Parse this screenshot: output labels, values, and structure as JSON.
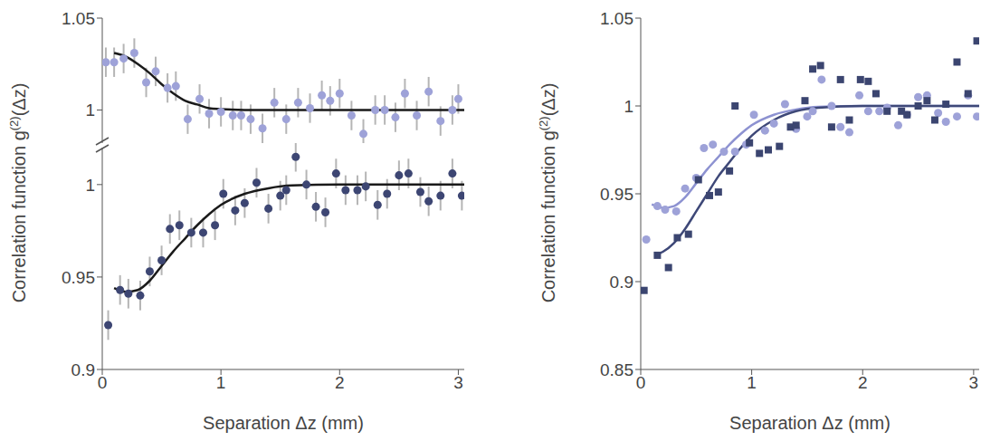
{
  "chart_data": [
    {
      "type": "scatter",
      "xlim": [
        0,
        3.05
      ],
      "xticks": [
        0,
        1,
        2,
        3
      ],
      "ylim": [
        0.982,
        1.05
      ],
      "yticks": [
        1,
        1.05
      ],
      "tick_labels": "y",
      "grid": false,
      "series": [
        {
          "type": "scatter",
          "color": "#9ea2d8",
          "marker": "circle",
          "x": [
            0.03,
            0.1,
            0.18,
            0.27,
            0.37,
            0.45,
            0.55,
            0.62,
            0.72,
            0.82,
            0.9,
            1.0,
            1.1,
            1.17,
            1.25,
            1.35,
            1.45,
            1.55,
            1.65,
            1.75,
            1.85,
            1.92,
            2.0,
            2.1,
            2.2,
            2.3,
            2.38,
            2.47,
            2.55,
            2.65,
            2.75,
            2.85,
            2.95,
            3.0
          ],
          "values": [
            1.026,
            1.026,
            1.028,
            1.031,
            1.015,
            1.021,
            1.012,
            1.013,
            0.995,
            1.006,
            0.998,
            0.999,
            0.997,
            0.997,
            0.995,
            0.99,
            1.004,
            0.995,
            1.004,
            1.001,
            1.008,
            1.005,
            1.009,
            0.997,
            0.987,
            1.0,
            1.0,
            0.996,
            1.009,
            0.997,
            1.01,
            0.994,
            1.0,
            1.006
          ],
          "errors": [
            0.008,
            0.008,
            0.008,
            0.008,
            0.008,
            0.008,
            0.008,
            0.008,
            0.008,
            0.008,
            0.008,
            0.008,
            0.008,
            0.008,
            0.008,
            0.008,
            0.008,
            0.008,
            0.008,
            0.008,
            0.008,
            0.008,
            0.008,
            0.008,
            0.008,
            0.008,
            0.008,
            0.008,
            0.008,
            0.008,
            0.008,
            0.008,
            0.008,
            0.008
          ]
        },
        {
          "type": "line",
          "color": "#1a1a1a",
          "line_style": "solid",
          "x": [
            0.1,
            0.2,
            0.3,
            0.4,
            0.5,
            0.6,
            0.7,
            0.8,
            0.9,
            1.0,
            1.2,
            1.5,
            2.0,
            2.5,
            3.05
          ],
          "values": [
            1.031,
            1.029,
            1.025,
            1.02,
            1.014,
            1.009,
            1.005,
            1.003,
            1.001,
            1.0005,
            1.0,
            1.0,
            1.0,
            1.0,
            1.0
          ]
        }
      ]
    },
    {
      "type": "scatter",
      "xlim": [
        0,
        3.05
      ],
      "xticks": [
        0,
        1,
        2,
        3
      ],
      "ylim": [
        0.9,
        1.02
      ],
      "yticks": [
        0.9,
        0.95,
        1
      ],
      "grid": false,
      "x_label": "Separation Δz (mm)",
      "y_label": "Correlation function g(2)(Δz)",
      "series": [
        {
          "type": "scatter",
          "color": "#3d4673",
          "marker": "circle",
          "x": [
            0.05,
            0.15,
            0.22,
            0.32,
            0.4,
            0.5,
            0.57,
            0.65,
            0.75,
            0.85,
            0.95,
            1.02,
            1.12,
            1.2,
            1.3,
            1.4,
            1.5,
            1.55,
            1.63,
            1.72,
            1.8,
            1.88,
            1.97,
            2.05,
            2.15,
            2.22,
            2.32,
            2.4,
            2.5,
            2.58,
            2.68,
            2.75,
            2.85,
            2.95,
            3.03
          ],
          "values": [
            0.924,
            0.943,
            0.941,
            0.94,
            0.953,
            0.959,
            0.976,
            0.978,
            0.974,
            0.974,
            0.978,
            0.995,
            0.986,
            0.99,
            1.001,
            0.987,
            0.994,
            0.997,
            1.015,
            1.0,
            0.988,
            0.985,
            1.006,
            0.997,
            0.997,
            0.999,
            0.989,
            0.995,
            1.005,
            1.006,
            0.996,
            0.991,
            0.994,
            1.006,
            0.994
          ],
          "errors": [
            0.008,
            0.008,
            0.008,
            0.008,
            0.008,
            0.008,
            0.008,
            0.008,
            0.008,
            0.008,
            0.008,
            0.008,
            0.008,
            0.008,
            0.008,
            0.008,
            0.008,
            0.008,
            0.008,
            0.008,
            0.008,
            0.008,
            0.008,
            0.008,
            0.008,
            0.008,
            0.008,
            0.008,
            0.008,
            0.008,
            0.008,
            0.008,
            0.008,
            0.008,
            0.008
          ]
        },
        {
          "type": "line",
          "color": "#1a1a1a",
          "line_style": "solid",
          "x": [
            0.1,
            0.2,
            0.3,
            0.4,
            0.5,
            0.6,
            0.7,
            0.8,
            0.9,
            1.0,
            1.2,
            1.4,
            1.6,
            2.0,
            2.5,
            3.05
          ],
          "values": [
            0.944,
            0.942,
            0.943,
            0.948,
            0.956,
            0.964,
            0.971,
            0.978,
            0.984,
            0.989,
            0.995,
            0.998,
            0.9995,
            1.0,
            1.0,
            1.0
          ]
        }
      ]
    },
    {
      "type": "scatter",
      "xlim": [
        0,
        3.05
      ],
      "xticks": [
        0,
        1,
        2,
        3
      ],
      "ylim": [
        0.85,
        1.05
      ],
      "yticks": [
        0.85,
        0.9,
        0.95,
        1,
        1.05
      ],
      "grid": false,
      "x_label": "Separation Δz (mm)",
      "y_label": "Correlation function g(2)(Δz)",
      "series": [
        {
          "type": "scatter",
          "color": "#9ea2d8",
          "marker": "circle",
          "x": [
            0.05,
            0.15,
            0.22,
            0.32,
            0.4,
            0.5,
            0.57,
            0.65,
            0.75,
            0.85,
            0.95,
            1.02,
            1.12,
            1.2,
            1.3,
            1.4,
            1.5,
            1.55,
            1.63,
            1.72,
            1.8,
            1.88,
            1.97,
            2.05,
            2.15,
            2.22,
            2.32,
            2.4,
            2.5,
            2.58,
            2.68,
            2.75,
            2.85,
            2.95,
            3.03
          ],
          "values": [
            0.924,
            0.943,
            0.941,
            0.94,
            0.953,
            0.959,
            0.976,
            0.978,
            0.974,
            0.974,
            0.978,
            0.995,
            0.986,
            0.99,
            1.001,
            0.987,
            0.994,
            0.997,
            1.015,
            1.0,
            0.988,
            0.985,
            1.006,
            0.997,
            0.997,
            0.999,
            0.989,
            0.995,
            1.005,
            1.006,
            0.996,
            0.991,
            0.994,
            1.006,
            0.994
          ]
        },
        {
          "type": "scatter",
          "color": "#3b4570",
          "marker": "square",
          "x": [
            0.03,
            0.15,
            0.25,
            0.33,
            0.43,
            0.52,
            0.62,
            0.7,
            0.8,
            0.85,
            0.98,
            1.07,
            1.15,
            1.25,
            1.35,
            1.4,
            1.48,
            1.55,
            1.62,
            1.72,
            1.8,
            1.88,
            1.98,
            2.05,
            2.12,
            2.22,
            2.35,
            2.4,
            2.5,
            2.58,
            2.65,
            2.75,
            2.85,
            2.95,
            3.03
          ],
          "values": [
            0.895,
            0.915,
            0.908,
            0.925,
            0.927,
            0.958,
            0.949,
            0.951,
            0.963,
            1.0,
            0.979,
            0.973,
            0.975,
            0.977,
            0.988,
            0.989,
            1.003,
            1.021,
            1.023,
            0.988,
            1.015,
            0.992,
            1.015,
            1.014,
            1.007,
            0.997,
            0.997,
            0.995,
            1.0,
            1.003,
            0.992,
            1.001,
            1.025,
            1.007,
            1.037
          ]
        },
        {
          "type": "line",
          "color": "#8d92d1",
          "line_style": "solid",
          "x": [
            0.1,
            0.2,
            0.3,
            0.4,
            0.5,
            0.6,
            0.7,
            0.8,
            0.9,
            1.0,
            1.2,
            1.4,
            1.6,
            2.0,
            2.5,
            3.05
          ],
          "values": [
            0.944,
            0.942,
            0.943,
            0.948,
            0.956,
            0.964,
            0.971,
            0.978,
            0.984,
            0.989,
            0.995,
            0.998,
            0.9995,
            1.0,
            1.0,
            1.0
          ]
        },
        {
          "type": "line",
          "color": "#3e4878",
          "line_style": "solid",
          "x": [
            0.13,
            0.2,
            0.3,
            0.4,
            0.5,
            0.6,
            0.7,
            0.8,
            0.9,
            1.0,
            1.2,
            1.4,
            1.6,
            2.0,
            3.05
          ],
          "values": [
            0.915,
            0.917,
            0.922,
            0.93,
            0.94,
            0.95,
            0.96,
            0.968,
            0.976,
            0.983,
            0.992,
            0.997,
            0.999,
            1.0,
            1.0
          ]
        }
      ]
    }
  ]
}
